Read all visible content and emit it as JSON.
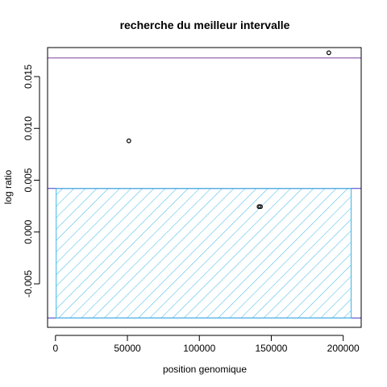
{
  "chart_data": {
    "type": "scatter",
    "title": "recherche du meilleur intervalle",
    "xlabel": "position genomique",
    "ylabel": "log ratio",
    "xlim": [
      -5500,
      212500
    ],
    "ylim": [
      -0.0092,
      0.0178
    ],
    "x_ticks": [
      0,
      50000,
      100000,
      150000,
      200000
    ],
    "x_tick_labels": [
      "0",
      "50000",
      "100000",
      "150000",
      "200000"
    ],
    "y_ticks": [
      -0.005,
      0.0,
      0.005,
      0.01,
      0.015
    ],
    "y_tick_labels": [
      "-0.005",
      "0.000",
      "0.005",
      "0.010",
      "0.015"
    ],
    "points": [
      {
        "x": 51000,
        "y": 0.0088
      },
      {
        "x": 141500,
        "y": 0.00245
      },
      {
        "x": 142500,
        "y": 0.00245
      },
      {
        "x": 190000,
        "y": 0.0173
      }
    ],
    "hlines": [
      {
        "y": 0.0168,
        "color": "#7b3f9e"
      },
      {
        "y": 0.0042,
        "color": "#3b3bcc"
      },
      {
        "y": -0.0083,
        "color": "#3b3bcc"
      }
    ],
    "hatched_rect": {
      "x0": 500,
      "x1": 205500,
      "y0": -0.0083,
      "y1": 0.0042,
      "color": "#3db8e6"
    },
    "grid": false,
    "legend": "none"
  }
}
